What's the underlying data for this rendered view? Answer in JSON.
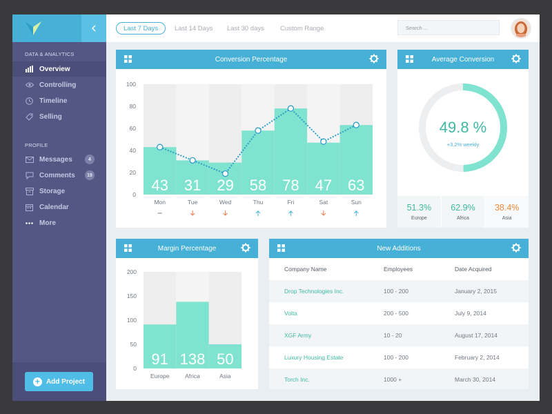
{
  "sidebar": {
    "section_data": "DATA & ANALYTICS",
    "section_profile": "PROFILE",
    "nav": [
      {
        "label": "Overview",
        "icon": "bar-chart-icon",
        "active": true
      },
      {
        "label": "Controlling",
        "icon": "eye-icon"
      },
      {
        "label": "Timeline",
        "icon": "clock-icon"
      },
      {
        "label": "Selling",
        "icon": "tag-icon"
      }
    ],
    "profile_nav": [
      {
        "label": "Messages",
        "icon": "envelope-icon",
        "badge": "4"
      },
      {
        "label": "Comments",
        "icon": "speech-bubble-icon",
        "badge": "19"
      },
      {
        "label": "Storage",
        "icon": "archive-box-icon"
      },
      {
        "label": "Calendar",
        "icon": "calendar-icon"
      },
      {
        "label": "More",
        "icon": "dots-icon"
      }
    ],
    "add_project": "Add Project"
  },
  "topbar": {
    "tabs": [
      "Last 7 Days",
      "Last 14 Days",
      "Last 30 days",
      "Custom Range"
    ],
    "active_tab": "Last 7 Days",
    "search_placeholder": "Search ..."
  },
  "colors": {
    "accent": "#46b0d6",
    "sidebar": "#545783",
    "teal": "#7fe3cf",
    "down": "#f07c4f",
    "up": "#46b0d6",
    "orange": "#f08a3c"
  },
  "conversion": {
    "title": "Conversion Percentage",
    "trends": [
      "flat",
      "down",
      "down",
      "up",
      "up",
      "down",
      "up"
    ]
  },
  "average": {
    "title": "Average Conversion",
    "value": "49.8 %",
    "value_fraction": 0.498,
    "delta": "+3.2% weekly",
    "regions": [
      {
        "value": "51.3%",
        "label": "Europe",
        "color": "#3fb9a3"
      },
      {
        "value": "62.9%",
        "label": "Africa",
        "color": "#3fb9a3"
      },
      {
        "value": "38.4%",
        "label": "Asia",
        "color": "#f08a3c"
      }
    ]
  },
  "margin": {
    "title": "Margin Percentage"
  },
  "additions": {
    "title": "New Additions",
    "columns": [
      "Company Name",
      "Employees",
      "Date Acquired"
    ],
    "rows": [
      [
        "Drop Technologies Inc.",
        "100 - 200",
        "January 2, 2015"
      ],
      [
        "Volta",
        "200 - 500",
        "July 9, 2014"
      ],
      [
        "XGF Army",
        "10 - 20",
        "August 17, 2014"
      ],
      [
        "Luxury Housing Estate",
        "100 - 200",
        "February 2, 2014"
      ],
      [
        "Torch Inc.",
        "1000 +",
        "March 30, 2014"
      ]
    ]
  },
  "chart_data": [
    {
      "type": "bar",
      "title": "Conversion Percentage",
      "categories": [
        "Mon",
        "Tue",
        "Wed",
        "Thu",
        "Fri",
        "Sat",
        "Sun"
      ],
      "values": [
        43,
        31,
        29,
        58,
        78,
        47,
        63
      ],
      "line": [
        43,
        31,
        19,
        58,
        78,
        48,
        63
      ],
      "ylim": [
        0,
        100
      ],
      "yticks": [
        "0",
        "20",
        "40",
        "60",
        "80",
        "100"
      ],
      "grid": false
    },
    {
      "type": "bar",
      "title": "Margin Percentage",
      "categories": [
        "Europe",
        "Africa",
        "Asia"
      ],
      "values": [
        91,
        138,
        50
      ],
      "ylim": [
        0,
        200
      ],
      "yticks": [
        "0",
        "50",
        "100",
        "150",
        "200"
      ],
      "grid": false
    }
  ]
}
